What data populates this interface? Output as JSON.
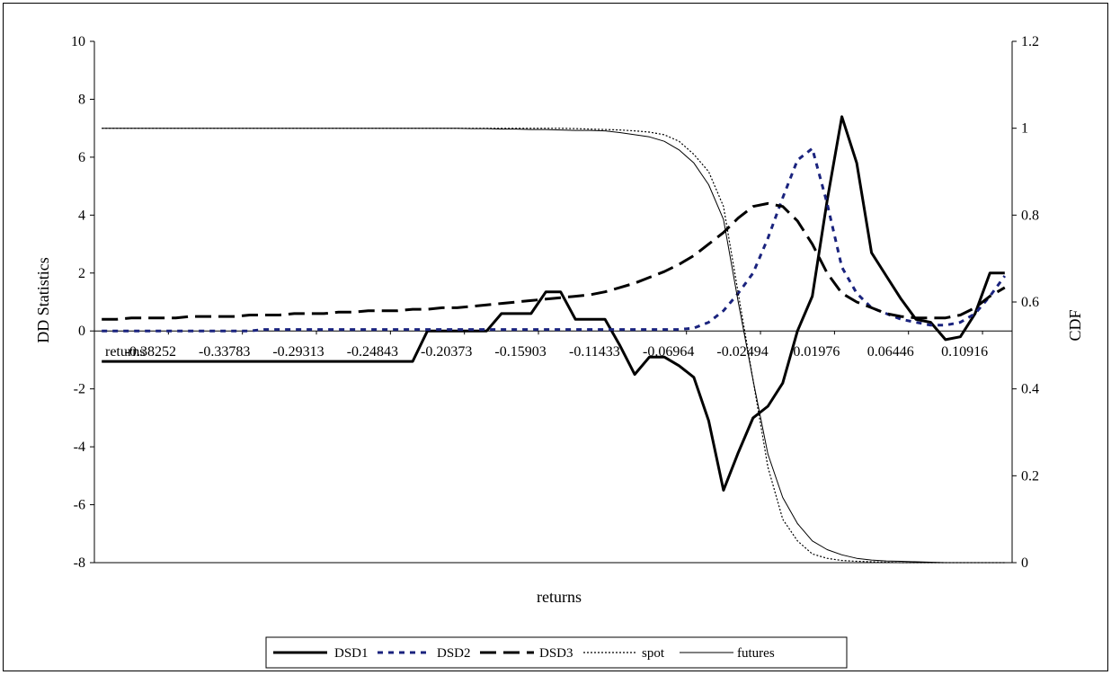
{
  "chart_data": {
    "type": "line",
    "title": "",
    "xlabel": "returns",
    "ylabel_left": "DD Statistics",
    "ylabel_right": "CDF",
    "ylim_left": [
      -8,
      10
    ],
    "ylim_right": [
      0,
      1.2
    ],
    "yticks_left": [
      "-8",
      "-6",
      "-4",
      "-2",
      "0",
      "2",
      "4",
      "6",
      "8",
      "10"
    ],
    "yticks_right": [
      "0",
      "0.2",
      "0.4",
      "0.6",
      "0.8",
      "1",
      "1.2"
    ],
    "x_tick_labels": [
      "returns",
      "-0.38252",
      "-0.33783",
      "-0.29313",
      "-0.24843",
      "-0.20373",
      "-0.15903",
      "-0.11433",
      "-0.06964",
      "-0.02494",
      "0.01976",
      "0.06446",
      "0.10916"
    ],
    "x": [
      -0.4273,
      -0.4184,
      -0.4094,
      -0.4005,
      -0.3915,
      -0.3825,
      -0.3736,
      -0.3646,
      -0.3557,
      -0.3467,
      -0.3378,
      -0.3289,
      -0.3199,
      -0.311,
      -0.302,
      -0.2931,
      -0.2842,
      -0.2752,
      -0.2663,
      -0.2573,
      -0.2484,
      -0.2395,
      -0.2305,
      -0.2216,
      -0.2126,
      -0.2037,
      -0.1948,
      -0.1858,
      -0.1769,
      -0.1679,
      -0.159,
      -0.1501,
      -0.1411,
      -0.1322,
      -0.1232,
      -0.1143,
      -0.1054,
      -0.0964,
      -0.0875,
      -0.0785,
      -0.0696,
      -0.0607,
      -0.0517,
      -0.0428,
      -0.0338,
      -0.0249,
      -0.016,
      -0.007,
      0.0019,
      0.0109,
      0.0198,
      0.0287,
      0.0377,
      0.0466,
      0.0556,
      0.0645,
      0.0734,
      0.0824,
      0.0913,
      0.1003,
      0.1092,
      0.1181
    ],
    "series": [
      {
        "name": "DSD1",
        "axis": "left",
        "style": "solid-thick",
        "values": [
          -1.05,
          -1.05,
          -1.05,
          -1.05,
          -1.05,
          -1.05,
          -1.05,
          -1.05,
          -1.05,
          -1.05,
          -1.05,
          -1.05,
          -1.05,
          -1.05,
          -1.05,
          -1.05,
          -1.05,
          -1.05,
          -1.05,
          -1.05,
          -1.05,
          -1.05,
          0,
          0,
          0,
          0,
          0,
          0.6,
          0.6,
          0.6,
          1.35,
          1.35,
          0.4,
          0.4,
          0.4,
          -0.5,
          -1.5,
          -0.9,
          -0.9,
          -1.2,
          -1.6,
          -3.1,
          -5.5,
          -4.2,
          -3.0,
          -2.6,
          -1.8,
          0,
          1.2,
          4.5,
          7.4,
          5.8,
          2.7,
          1.9,
          1.1,
          0.4,
          0.3,
          -0.3,
          -0.2,
          0.6,
          2.0,
          2.0
        ]
      },
      {
        "name": "DSD2",
        "axis": "left",
        "style": "dotted-blue",
        "values": [
          0,
          0,
          0,
          0,
          0,
          0,
          0,
          0,
          0,
          0,
          0,
          0.05,
          0.05,
          0.05,
          0.05,
          0.05,
          0.05,
          0.05,
          0.05,
          0.05,
          0.05,
          0.05,
          0.05,
          0.05,
          0.05,
          0.05,
          0.05,
          0.05,
          0.05,
          0.05,
          0.05,
          0.05,
          0.05,
          0.05,
          0.05,
          0.05,
          0.05,
          0.05,
          0.05,
          0.05,
          0.1,
          0.3,
          0.7,
          1.3,
          2.0,
          3.2,
          4.6,
          5.9,
          6.3,
          4.4,
          2.2,
          1.3,
          0.8,
          0.6,
          0.4,
          0.3,
          0.2,
          0.2,
          0.3,
          0.6,
          1.2,
          1.9
        ]
      },
      {
        "name": "DSD3",
        "axis": "left",
        "style": "dashed-long",
        "values": [
          0.4,
          0.4,
          0.45,
          0.45,
          0.45,
          0.45,
          0.5,
          0.5,
          0.5,
          0.5,
          0.55,
          0.55,
          0.55,
          0.6,
          0.6,
          0.6,
          0.65,
          0.65,
          0.7,
          0.7,
          0.7,
          0.75,
          0.75,
          0.8,
          0.8,
          0.85,
          0.9,
          0.95,
          1.0,
          1.05,
          1.1,
          1.15,
          1.2,
          1.25,
          1.35,
          1.5,
          1.65,
          1.85,
          2.05,
          2.3,
          2.6,
          3.0,
          3.4,
          3.9,
          4.3,
          4.4,
          4.3,
          3.8,
          3.0,
          2.0,
          1.3,
          1.0,
          0.8,
          0.6,
          0.5,
          0.45,
          0.45,
          0.45,
          0.55,
          0.8,
          1.2,
          1.5
        ]
      },
      {
        "name": "spot",
        "axis": "right",
        "style": "dotted-thin",
        "values": [
          1,
          1,
          1,
          1,
          1,
          1,
          1,
          1,
          1,
          1,
          1,
          1,
          1,
          1,
          1,
          1,
          1,
          1,
          1,
          1,
          1,
          1,
          1,
          1,
          1,
          1,
          1,
          1,
          1,
          1,
          1,
          1,
          0.999,
          0.998,
          0.997,
          0.996,
          0.994,
          0.991,
          0.985,
          0.97,
          0.94,
          0.9,
          0.82,
          0.62,
          0.42,
          0.22,
          0.1,
          0.05,
          0.02,
          0.01,
          0.005,
          0.003,
          0.002,
          0.001,
          0,
          0,
          0,
          0,
          0,
          0,
          0,
          0
        ]
      },
      {
        "name": "futures",
        "axis": "right",
        "style": "solid-thin",
        "values": [
          1,
          1,
          1,
          1,
          1,
          1,
          1,
          1,
          1,
          1,
          1,
          1,
          1,
          1,
          1,
          1,
          1,
          1,
          1,
          1,
          1,
          1,
          1,
          1,
          1,
          0.999,
          0.999,
          0.998,
          0.998,
          0.997,
          0.997,
          0.996,
          0.995,
          0.995,
          0.994,
          0.99,
          0.985,
          0.98,
          0.97,
          0.95,
          0.92,
          0.87,
          0.79,
          0.6,
          0.42,
          0.25,
          0.15,
          0.09,
          0.05,
          0.03,
          0.018,
          0.01,
          0.006,
          0.004,
          0.003,
          0.002,
          0.001,
          0,
          0,
          0,
          0,
          0
        ]
      }
    ],
    "legend": {
      "position": "bottom",
      "entries": [
        "DSD1",
        "DSD2",
        "DSD3",
        "spot",
        "futures"
      ]
    },
    "grid": false,
    "colors": {
      "DSD1": "#000000",
      "DSD2": "#1a237e",
      "DSD3": "#000000",
      "spot": "#000000",
      "futures": "#000000"
    }
  }
}
